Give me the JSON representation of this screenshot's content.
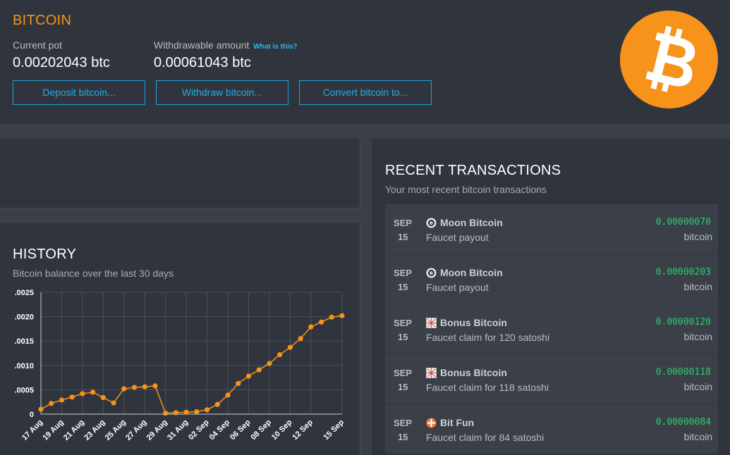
{
  "header": {
    "title": "BITCOIN",
    "current_pot_label": "Current pot",
    "current_pot_value": "0.00202043 btc",
    "withdrawable_label": "Withdrawable amount",
    "whatis_link": "What is this?",
    "withdrawable_value": "0.00061043 btc",
    "buttons": {
      "deposit": "Deposit bitcoin...",
      "withdraw": "Withdraw bitcoin...",
      "convert": "Convert bitcoin to..."
    },
    "logo_icon": "bitcoin-logo-icon",
    "logo_color": "#f7931a"
  },
  "history": {
    "title": "HISTORY",
    "subtitle": "Bitcoin balance over the last 30 days"
  },
  "chart_data": {
    "type": "line",
    "x": [
      "17 Aug",
      "18 Aug",
      "19 Aug",
      "20 Aug",
      "21 Aug",
      "22 Aug",
      "23 Aug",
      "24 Aug",
      "25 Aug",
      "26 Aug",
      "27 Aug",
      "28 Aug",
      "29 Aug",
      "30 Aug",
      "31 Aug",
      "01 Sep",
      "02 Sep",
      "03 Sep",
      "04 Sep",
      "05 Sep",
      "06 Sep",
      "07 Sep",
      "08 Sep",
      "09 Sep",
      "10 Sep",
      "11 Sep",
      "12 Sep",
      "13 Sep",
      "14 Sep",
      "15 Sep"
    ],
    "tick_labels": [
      "17 Aug",
      "19 Aug",
      "21 Aug",
      "23 Aug",
      "25 Aug",
      "27 Aug",
      "29 Aug",
      "31 Aug",
      "02 Sep",
      "04 Sep",
      "06 Sep",
      "08 Sep",
      "10 Sep",
      "12 Sep",
      "15 Sep"
    ],
    "values": [
      0.0001,
      0.00022,
      0.00029,
      0.00035,
      0.00042,
      0.00045,
      0.00034,
      0.00023,
      0.00052,
      0.00055,
      0.00056,
      0.00058,
      2e-05,
      3e-05,
      4e-05,
      5e-05,
      9e-05,
      0.0002,
      0.00039,
      0.00063,
      0.00078,
      0.00091,
      0.00104,
      0.00122,
      0.00137,
      0.00155,
      0.00179,
      0.00189,
      0.00199,
      0.00202
    ],
    "yticks": [
      0,
      0.0005,
      0.001,
      0.0015,
      0.002,
      0.0025
    ],
    "ytick_labels": [
      "0",
      ".0005",
      ".0010",
      ".0015",
      ".0020",
      ".0025"
    ],
    "ylim": [
      0,
      0.0025
    ],
    "grid": true,
    "line_color": "#f7931a"
  },
  "transactions": {
    "title": "RECENT TRANSACTIONS",
    "subtitle": "Your most recent bitcoin transactions",
    "items": [
      {
        "month": "SEP",
        "day": "15",
        "icon": "moon-bitcoin-icon",
        "name": "Moon Bitcoin",
        "desc": "Faucet payout",
        "amount": "0.00000070",
        "unit": "bitcoin"
      },
      {
        "month": "SEP",
        "day": "15",
        "icon": "moon-bitcoin-icon",
        "name": "Moon Bitcoin",
        "desc": "Faucet payout",
        "amount": "0.00000203",
        "unit": "bitcoin"
      },
      {
        "month": "SEP",
        "day": "15",
        "icon": "bonus-bitcoin-icon",
        "name": "Bonus Bitcoin",
        "desc": "Faucet claim for 120 satoshi",
        "amount": "0.00000120",
        "unit": "bitcoin"
      },
      {
        "month": "SEP",
        "day": "15",
        "icon": "bonus-bitcoin-icon",
        "name": "Bonus Bitcoin",
        "desc": "Faucet claim for 118 satoshi",
        "amount": "0.00000118",
        "unit": "bitcoin"
      },
      {
        "month": "SEP",
        "day": "15",
        "icon": "bit-fun-icon",
        "name": "Bit Fun",
        "desc": "Faucet claim for 84 satoshi",
        "amount": "0.00000084",
        "unit": "bitcoin"
      }
    ]
  }
}
